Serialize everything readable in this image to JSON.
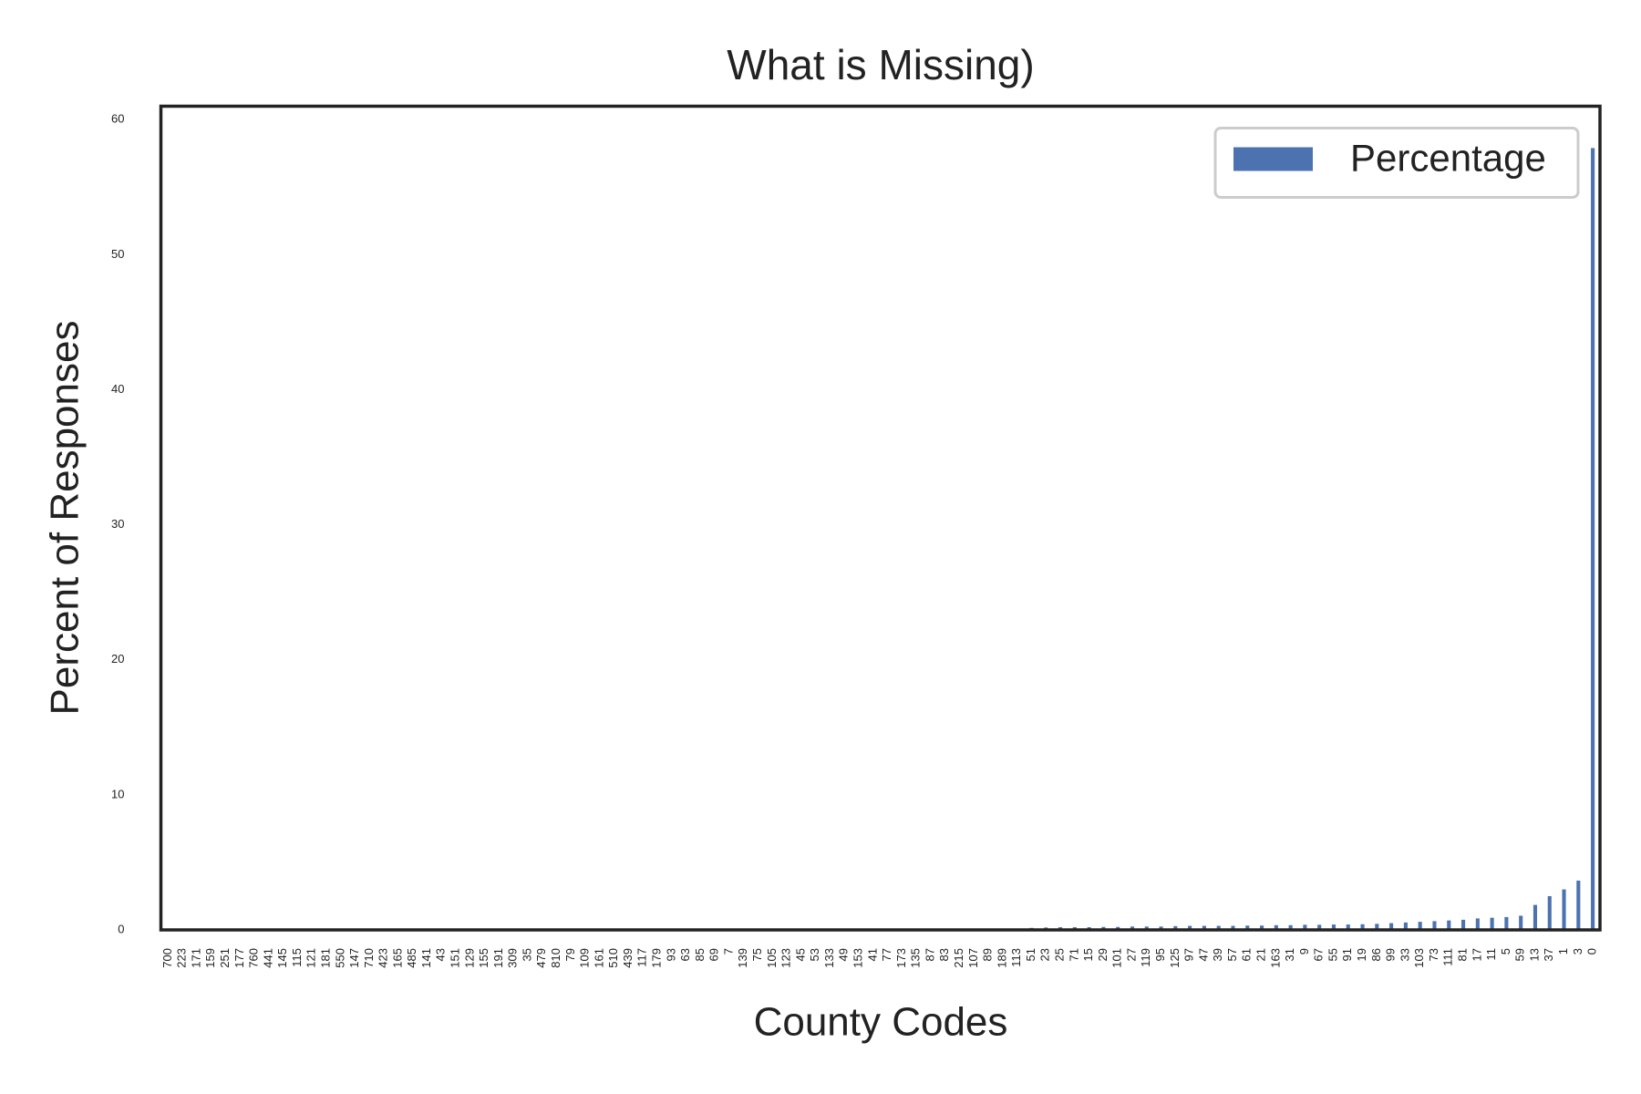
{
  "chart_data": {
    "type": "bar",
    "title": "What is Missing)",
    "x_label": "County Codes",
    "y_label": "Percent of Responses",
    "categories": [
      "700",
      "223",
      "171",
      "159",
      "251",
      "177",
      "760",
      "441",
      "145",
      "115",
      "121",
      "181",
      "550",
      "147",
      "710",
      "423",
      "165",
      "485",
      "141",
      "43",
      "151",
      "129",
      "155",
      "191",
      "309",
      "35",
      "479",
      "810",
      "79",
      "109",
      "161",
      "510",
      "439",
      "117",
      "179",
      "93",
      "63",
      "85",
      "69",
      "7",
      "139",
      "75",
      "105",
      "123",
      "45",
      "53",
      "133",
      "49",
      "153",
      "41",
      "77",
      "173",
      "135",
      "87",
      "83",
      "215",
      "107",
      "89",
      "189",
      "113",
      "51",
      "23",
      "25",
      "71",
      "15",
      "29",
      "101",
      "27",
      "119",
      "95",
      "125",
      "97",
      "47",
      "39",
      "57",
      "61",
      "21",
      "163",
      "31",
      "9",
      "67",
      "55",
      "91",
      "19",
      "86",
      "99",
      "33",
      "103",
      "73",
      "111",
      "81",
      "17",
      "11",
      "5",
      "59",
      "13",
      "37",
      "1",
      "3",
      "0"
    ],
    "series": [
      {
        "name": "Percentage",
        "color": "#4c72b0",
        "values": [
          0.01,
          0.01,
          0.01,
          0.01,
          0.01,
          0.01,
          0.01,
          0.01,
          0.01,
          0.01,
          0.01,
          0.01,
          0.01,
          0.01,
          0.01,
          0.01,
          0.01,
          0.01,
          0.01,
          0.01,
          0.02,
          0.02,
          0.02,
          0.02,
          0.02,
          0.02,
          0.02,
          0.02,
          0.02,
          0.02,
          0.03,
          0.03,
          0.03,
          0.03,
          0.03,
          0.03,
          0.03,
          0.03,
          0.03,
          0.03,
          0.04,
          0.04,
          0.04,
          0.04,
          0.04,
          0.05,
          0.05,
          0.05,
          0.05,
          0.05,
          0.06,
          0.06,
          0.06,
          0.07,
          0.07,
          0.08,
          0.08,
          0.09,
          0.09,
          0.1,
          0.15,
          0.18,
          0.2,
          0.2,
          0.2,
          0.22,
          0.22,
          0.25,
          0.25,
          0.25,
          0.28,
          0.3,
          0.3,
          0.3,
          0.3,
          0.32,
          0.32,
          0.35,
          0.35,
          0.38,
          0.38,
          0.4,
          0.4,
          0.42,
          0.45,
          0.5,
          0.55,
          0.6,
          0.65,
          0.7,
          0.75,
          0.85,
          0.9,
          0.95,
          1.05,
          1.85,
          2.5,
          3.0,
          3.65,
          57.9
        ]
      }
    ],
    "ylim": [
      0,
      61
    ],
    "yticks": [
      0,
      10,
      20,
      30,
      40,
      50,
      60
    ],
    "grid": false,
    "legend": "upper right"
  }
}
